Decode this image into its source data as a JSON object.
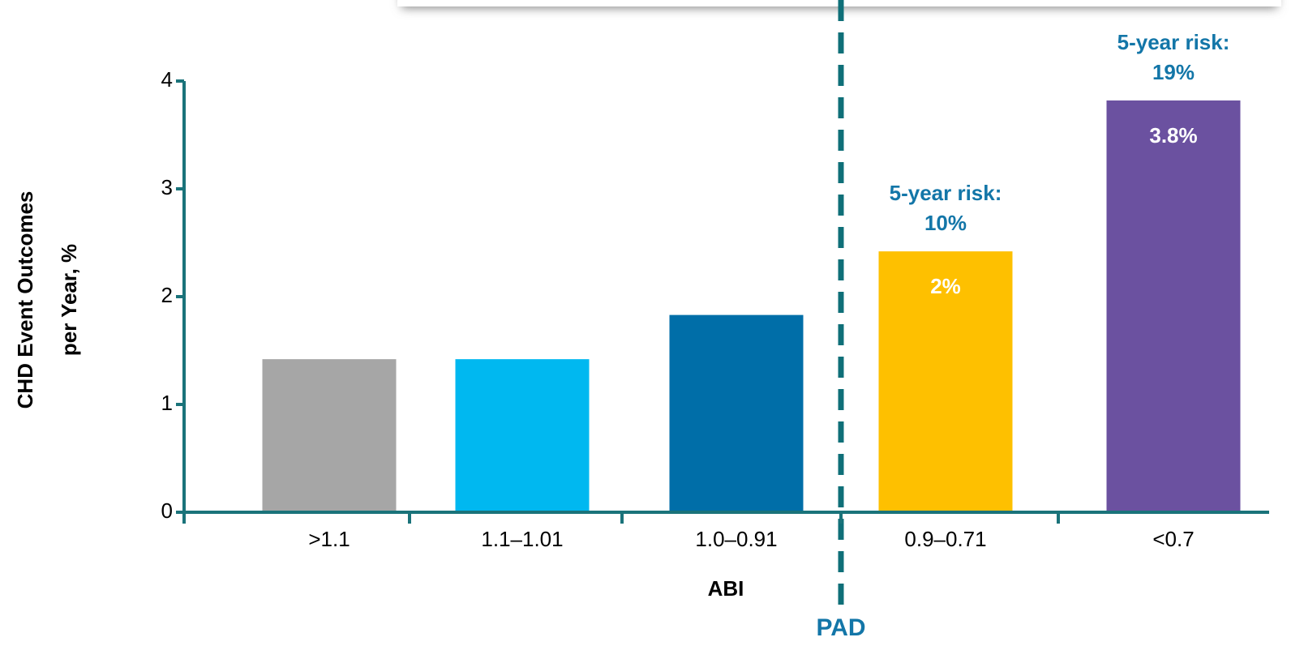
{
  "chart_data": {
    "type": "bar",
    "categories": [
      ">1.1",
      "1.1–1.01",
      "1.0–0.91",
      "0.9–0.71",
      "<0.7"
    ],
    "values": [
      1.42,
      1.42,
      1.83,
      2.42,
      3.82
    ],
    "colors": [
      "#a6a6a6",
      "#00b8f0",
      "#006ea8",
      "#fec000",
      "#6b51a0"
    ],
    "ylim": [
      0,
      4
    ],
    "yticks": [
      0,
      1,
      2,
      3,
      4
    ],
    "x_label": "ABI",
    "y_label": [
      "CHD Event Outcomes",
      "per Year, %"
    ],
    "divider_label": "PAD",
    "annotations": [
      null,
      null,
      null,
      {
        "rate": "2%",
        "risk": [
          "5-year risk:",
          "10%"
        ]
      },
      {
        "rate": "3.8%",
        "risk": [
          "5-year risk:",
          "19%"
        ]
      }
    ]
  }
}
